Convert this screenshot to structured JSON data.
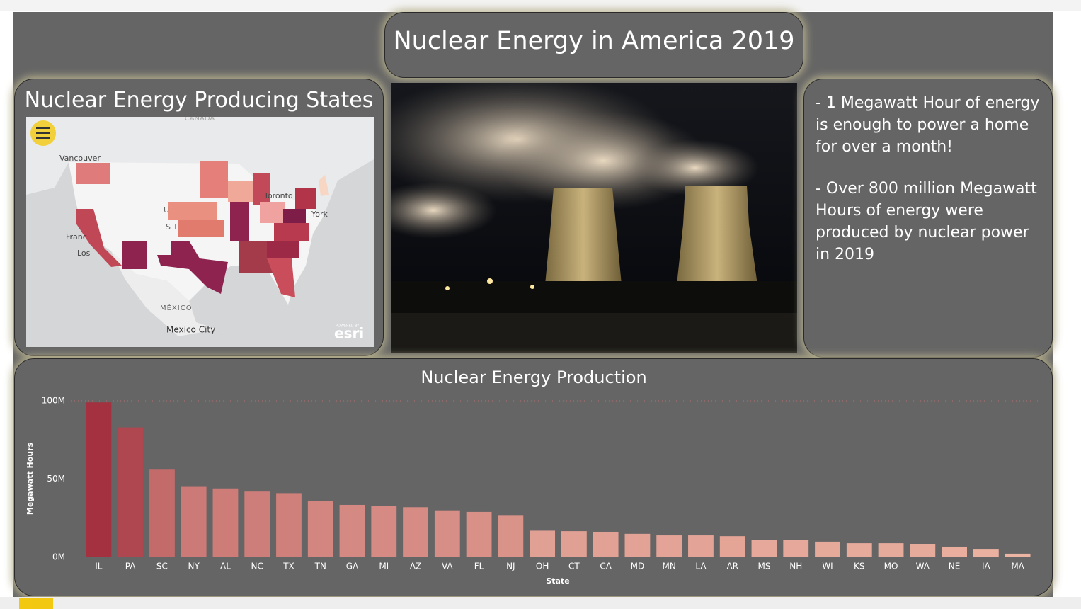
{
  "header": {
    "title": "Nuclear Energy in America 2019"
  },
  "map": {
    "title": "Nuclear Energy Producing States",
    "labels": [
      "CANADA",
      "Vancouver",
      "Toronto",
      "York",
      "Franc",
      "Los",
      "U",
      "S T",
      "MÉXICO",
      "Mexico City",
      "POWERED BY",
      "esri"
    ]
  },
  "facts": [
    "- 1 Megawatt Hour of energy is enough to power a home for over a month!",
    "- Over 800 million Megawatt Hours of energy were produced by nuclear power in 2019"
  ],
  "chart_data": {
    "type": "bar",
    "title": "Nuclear Energy Production",
    "x_label": "State",
    "y_label": "Megawatt Hours",
    "categories": [
      "IL",
      "PA",
      "SC",
      "NY",
      "AL",
      "NC",
      "TX",
      "TN",
      "GA",
      "MI",
      "AZ",
      "VA",
      "FL",
      "NJ",
      "OH",
      "CT",
      "CA",
      "MD",
      "MN",
      "LA",
      "AR",
      "MS",
      "NH",
      "WI",
      "KS",
      "MO",
      "WA",
      "NE",
      "IA",
      "MA"
    ],
    "values": [
      99000000,
      83000000,
      56000000,
      45000000,
      44000000,
      42000000,
      41000000,
      36000000,
      33500000,
      33000000,
      32000000,
      30000000,
      29000000,
      27000000,
      17000000,
      16700000,
      16300000,
      15000000,
      14000000,
      14000000,
      13500000,
      11300000,
      11000000,
      10000000,
      9000000,
      9000000,
      8600000,
      6800000,
      5400000,
      2300000
    ],
    "color_low": "#ecb4a3",
    "color_high": "#a3313f",
    "ylim": [
      0,
      100000000
    ],
    "yticks": [
      {
        "value": 0,
        "label": "0M"
      },
      {
        "value": 50000000,
        "label": "50M"
      },
      {
        "value": 100000000,
        "label": "100M"
      }
    ],
    "grid": true
  }
}
